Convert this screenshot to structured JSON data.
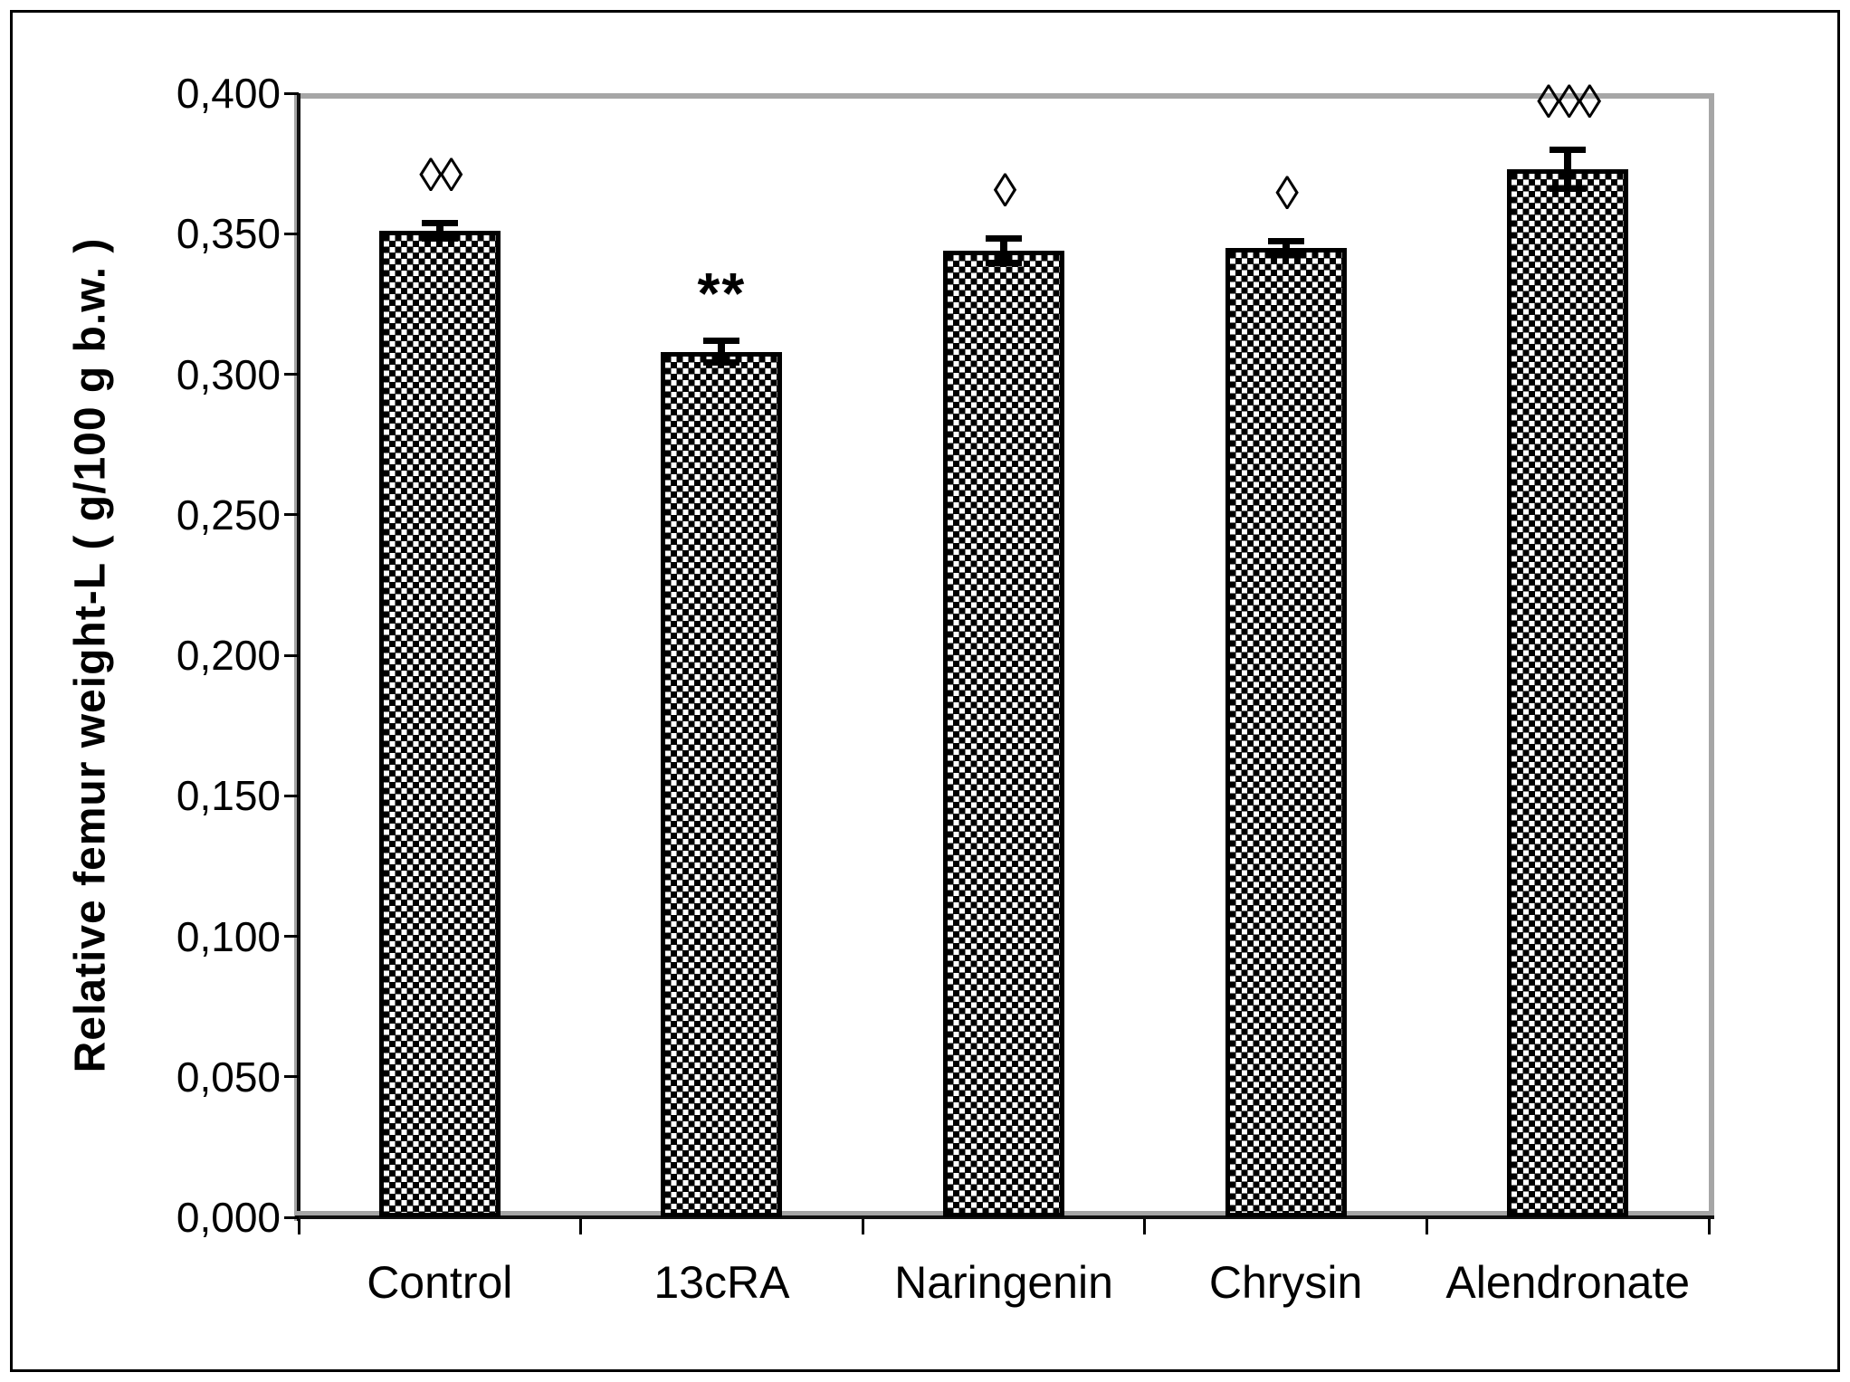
{
  "figure": {
    "background": "#ffffff",
    "border_color": "#000000",
    "frame_color": "#a6a6a6"
  },
  "chart_data": {
    "type": "bar",
    "title": "",
    "xlabel": "",
    "ylabel": "Relative femur weight-L ( g/100 g b.w. )",
    "categories": [
      "Control",
      "13cRA",
      "Naringenin",
      "Chrysin",
      "Alendronate"
    ],
    "values": [
      0.351,
      0.308,
      0.344,
      0.345,
      0.373
    ],
    "errors": [
      0.003,
      0.004,
      0.0045,
      0.0026,
      0.007
    ],
    "annotations": [
      "◊◊",
      "**",
      "◊",
      "◊",
      "◊◊◊"
    ],
    "ylim": [
      0,
      0.4
    ],
    "ytick_step": 0.05,
    "ytick_labels": [
      "0,000",
      "0,050",
      "0,100",
      "0,150",
      "0,200",
      "0,250",
      "0,300",
      "0,350",
      "0,400"
    ],
    "decimal_separator": ",",
    "grid": "top-border-only",
    "legend_position": "none",
    "bar_fill": "black-white-checker-pattern",
    "bar_border_color": "#000000",
    "error_bar_color": "#000000",
    "axis_color": "#111111",
    "gridline_color": "#a6a6a6"
  }
}
